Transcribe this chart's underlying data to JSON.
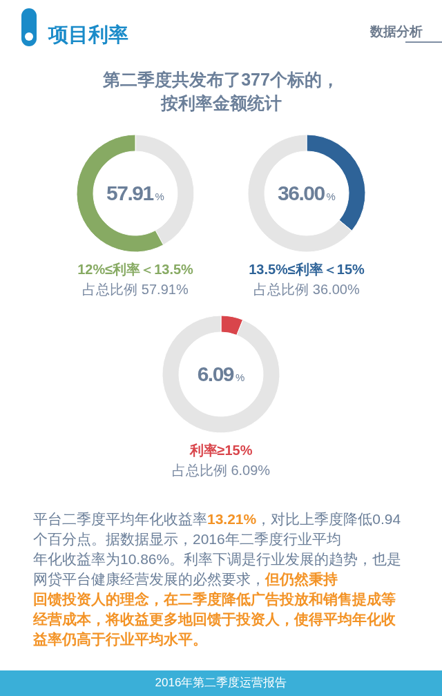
{
  "chart_data": [
    {
      "type": "other",
      "title": "项目利率",
      "subtitle": "第二季度共发布了377个标的，按利率金额统计",
      "annotations": [
        "数据分析"
      ]
    },
    {
      "type": "donut",
      "title": "12%≤利率＜13.5%",
      "categories": [
        null,
        null
      ],
      "values": [
        42.09,
        57.91
      ],
      "colors": [
        "#e5e5e5",
        "#87aa63"
      ],
      "value_labels": [
        null,
        "57.91%"
      ],
      "annotations": [
        "占总比例 57.91%"
      ]
    },
    {
      "type": "donut",
      "title": "13.5%≤利率＜15%",
      "categories": [
        null,
        null
      ],
      "values": [
        36.0,
        64.0
      ],
      "colors": [
        "#2e6398",
        "#e5e5e5"
      ],
      "value_labels": [
        "36.00%",
        null
      ],
      "annotations": [
        "占总比例 36.00%"
      ]
    },
    {
      "type": "donut",
      "title": "利率≥15%",
      "categories": [
        null,
        null
      ],
      "values": [
        6.09,
        93.91
      ],
      "colors": [
        "#d9454b",
        "#e5e5e5"
      ],
      "value_labels": [
        "6.09%",
        null
      ],
      "annotations": [
        "占总比例 6.09%"
      ]
    },
    {
      "type": "other",
      "annotations": [
        "平台二季度平均年化收益率",
        "13.21%",
        "，对比上季度降低0.94",
        "个百分点。据数据显示，2016年二季度行业平均",
        "年化收益率为10.86%。利率下调是行业发展的趋势，也是",
        "网贷平台健康经营发展的必然要求，",
        "但仍然秉持",
        "回馈投资人的理念，在二季度降低广告投放和销售提成等",
        "经营成本，将收益更多地回馈于投资人，使得平均年化收",
        "益率仍高于行业平均水平。"
      ]
    },
    {
      "type": "other",
      "annotations": [
        "2016年第二季度运营报告"
      ]
    }
  ]
}
